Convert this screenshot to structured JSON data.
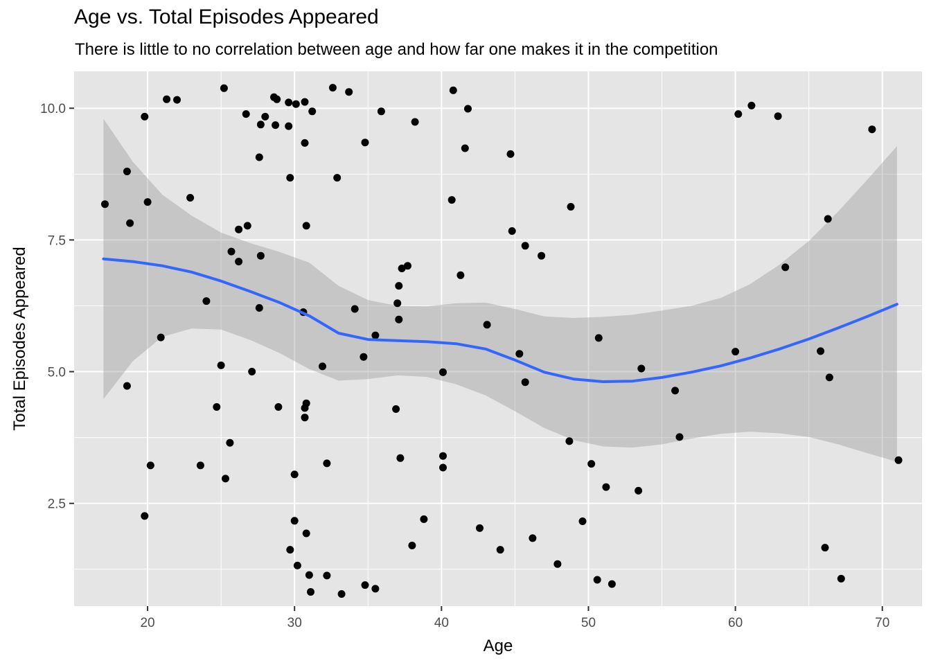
{
  "chart_data": {
    "type": "scatter",
    "title": "Age vs. Total Episodes Appeared",
    "subtitle": "There is little to no correlation between age and how far one makes it in the competition",
    "xlabel": "Age",
    "ylabel": "Total Episodes Appeared",
    "xlim": [
      15,
      72.7
    ],
    "ylim": [
      0.55,
      10.7
    ],
    "x_ticks": [
      20,
      30,
      40,
      50,
      60,
      70
    ],
    "y_ticks": [
      2.5,
      5.0,
      7.5,
      10.0
    ],
    "x_tick_labels": [
      "20",
      "30",
      "40",
      "50",
      "60",
      "70"
    ],
    "y_tick_labels": [
      "2.5",
      "5.0",
      "7.5",
      "10.0"
    ],
    "grid": true,
    "legend": "none",
    "colors": {
      "panel": "#E5E5E5",
      "grid": "#FFFFFF",
      "points": "#000000",
      "smooth_line": "#3366FF",
      "confidence_band": "#999999"
    },
    "points": [
      {
        "x": 17.1,
        "y": 8.18
      },
      {
        "x": 18.6,
        "y": 8.8
      },
      {
        "x": 18.8,
        "y": 7.82
      },
      {
        "x": 18.6,
        "y": 4.73
      },
      {
        "x": 19.8,
        "y": 9.84
      },
      {
        "x": 19.8,
        "y": 2.26
      },
      {
        "x": 20.0,
        "y": 8.22
      },
      {
        "x": 20.2,
        "y": 3.22
      },
      {
        "x": 20.9,
        "y": 5.65
      },
      {
        "x": 21.3,
        "y": 10.17
      },
      {
        "x": 22.0,
        "y": 10.16
      },
      {
        "x": 22.9,
        "y": 8.3
      },
      {
        "x": 23.6,
        "y": 3.22
      },
      {
        "x": 24.0,
        "y": 6.34
      },
      {
        "x": 24.7,
        "y": 4.33
      },
      {
        "x": 25.0,
        "y": 5.12
      },
      {
        "x": 25.2,
        "y": 10.38
      },
      {
        "x": 25.3,
        "y": 2.97
      },
      {
        "x": 25.6,
        "y": 3.65
      },
      {
        "x": 25.7,
        "y": 7.28
      },
      {
        "x": 26.2,
        "y": 7.7
      },
      {
        "x": 26.2,
        "y": 7.09
      },
      {
        "x": 26.7,
        "y": 9.89
      },
      {
        "x": 26.8,
        "y": 7.77
      },
      {
        "x": 27.1,
        "y": 5.0
      },
      {
        "x": 27.6,
        "y": 9.07
      },
      {
        "x": 27.7,
        "y": 9.69
      },
      {
        "x": 27.7,
        "y": 7.2
      },
      {
        "x": 27.6,
        "y": 6.21
      },
      {
        "x": 28.0,
        "y": 9.84
      },
      {
        "x": 28.6,
        "y": 10.21
      },
      {
        "x": 28.8,
        "y": 10.17
      },
      {
        "x": 28.7,
        "y": 9.68
      },
      {
        "x": 28.9,
        "y": 4.33
      },
      {
        "x": 29.6,
        "y": 9.66
      },
      {
        "x": 29.6,
        "y": 10.11
      },
      {
        "x": 29.7,
        "y": 8.68
      },
      {
        "x": 30.1,
        "y": 10.08
      },
      {
        "x": 29.7,
        "y": 1.62
      },
      {
        "x": 30.0,
        "y": 3.05
      },
      {
        "x": 30.0,
        "y": 2.17
      },
      {
        "x": 30.2,
        "y": 1.32
      },
      {
        "x": 30.6,
        "y": 6.13
      },
      {
        "x": 30.7,
        "y": 10.12
      },
      {
        "x": 30.7,
        "y": 9.34
      },
      {
        "x": 30.7,
        "y": 4.31
      },
      {
        "x": 30.7,
        "y": 4.13
      },
      {
        "x": 30.8,
        "y": 4.4
      },
      {
        "x": 30.8,
        "y": 7.77
      },
      {
        "x": 30.8,
        "y": 1.93
      },
      {
        "x": 31.0,
        "y": 1.14
      },
      {
        "x": 31.1,
        "y": 0.82
      },
      {
        "x": 31.2,
        "y": 9.94
      },
      {
        "x": 31.9,
        "y": 5.1
      },
      {
        "x": 32.2,
        "y": 3.26
      },
      {
        "x": 32.2,
        "y": 1.13
      },
      {
        "x": 32.6,
        "y": 10.39
      },
      {
        "x": 32.9,
        "y": 8.68
      },
      {
        "x": 33.2,
        "y": 0.78
      },
      {
        "x": 33.7,
        "y": 10.31
      },
      {
        "x": 34.1,
        "y": 6.19
      },
      {
        "x": 34.7,
        "y": 5.28
      },
      {
        "x": 34.8,
        "y": 9.35
      },
      {
        "x": 34.8,
        "y": 0.95
      },
      {
        "x": 35.5,
        "y": 5.69
      },
      {
        "x": 35.9,
        "y": 9.94
      },
      {
        "x": 35.5,
        "y": 0.88
      },
      {
        "x": 37.0,
        "y": 6.3
      },
      {
        "x": 37.1,
        "y": 6.63
      },
      {
        "x": 37.1,
        "y": 5.99
      },
      {
        "x": 36.9,
        "y": 4.29
      },
      {
        "x": 37.2,
        "y": 3.36
      },
      {
        "x": 37.3,
        "y": 6.96
      },
      {
        "x": 37.7,
        "y": 7.01
      },
      {
        "x": 38.0,
        "y": 1.7
      },
      {
        "x": 38.2,
        "y": 9.74
      },
      {
        "x": 38.8,
        "y": 2.2
      },
      {
        "x": 40.1,
        "y": 3.4
      },
      {
        "x": 40.1,
        "y": 3.18
      },
      {
        "x": 40.1,
        "y": 4.99
      },
      {
        "x": 40.7,
        "y": 8.26
      },
      {
        "x": 40.8,
        "y": 10.34
      },
      {
        "x": 41.3,
        "y": 6.83
      },
      {
        "x": 41.6,
        "y": 9.24
      },
      {
        "x": 41.8,
        "y": 9.99
      },
      {
        "x": 42.6,
        "y": 2.03
      },
      {
        "x": 43.1,
        "y": 5.89
      },
      {
        "x": 44.0,
        "y": 1.62
      },
      {
        "x": 44.7,
        "y": 9.13
      },
      {
        "x": 44.8,
        "y": 7.67
      },
      {
        "x": 45.3,
        "y": 5.34
      },
      {
        "x": 45.7,
        "y": 7.39
      },
      {
        "x": 45.7,
        "y": 4.8
      },
      {
        "x": 46.2,
        "y": 1.84
      },
      {
        "x": 46.8,
        "y": 7.2
      },
      {
        "x": 47.9,
        "y": 1.35
      },
      {
        "x": 48.7,
        "y": 3.68
      },
      {
        "x": 48.8,
        "y": 8.13
      },
      {
        "x": 49.6,
        "y": 2.16
      },
      {
        "x": 50.2,
        "y": 3.25
      },
      {
        "x": 50.6,
        "y": 1.05
      },
      {
        "x": 50.7,
        "y": 5.64
      },
      {
        "x": 51.2,
        "y": 2.81
      },
      {
        "x": 51.6,
        "y": 0.97
      },
      {
        "x": 53.4,
        "y": 2.74
      },
      {
        "x": 53.6,
        "y": 5.06
      },
      {
        "x": 55.9,
        "y": 4.64
      },
      {
        "x": 56.2,
        "y": 3.76
      },
      {
        "x": 60.0,
        "y": 5.38
      },
      {
        "x": 60.2,
        "y": 9.89
      },
      {
        "x": 61.1,
        "y": 10.05
      },
      {
        "x": 62.9,
        "y": 9.85
      },
      {
        "x": 63.4,
        "y": 6.98
      },
      {
        "x": 65.8,
        "y": 5.39
      },
      {
        "x": 66.1,
        "y": 1.66
      },
      {
        "x": 66.3,
        "y": 7.9
      },
      {
        "x": 66.4,
        "y": 4.89
      },
      {
        "x": 67.2,
        "y": 1.07
      },
      {
        "x": 69.3,
        "y": 9.6
      },
      {
        "x": 71.1,
        "y": 3.32
      }
    ],
    "smooth": {
      "x": [
        17,
        19,
        21,
        23,
        25,
        27,
        29,
        31,
        33,
        35,
        37,
        39,
        41,
        43,
        45,
        47,
        49,
        51,
        53,
        55,
        57,
        59,
        61,
        63,
        65,
        67,
        69,
        71
      ],
      "y": [
        7.14,
        7.09,
        7.01,
        6.89,
        6.72,
        6.52,
        6.31,
        6.06,
        5.73,
        5.61,
        5.59,
        5.57,
        5.53,
        5.43,
        5.22,
        4.99,
        4.86,
        4.81,
        4.82,
        4.89,
        4.99,
        5.11,
        5.26,
        5.43,
        5.62,
        5.83,
        6.05,
        6.28
      ],
      "lower": [
        4.48,
        5.2,
        5.66,
        5.82,
        5.8,
        5.6,
        5.35,
        5.05,
        4.83,
        4.86,
        4.93,
        4.9,
        4.76,
        4.55,
        4.25,
        3.93,
        3.7,
        3.58,
        3.56,
        3.62,
        3.73,
        3.82,
        3.86,
        3.83,
        3.76,
        3.62,
        3.45,
        3.29
      ],
      "upper": [
        9.8,
        8.98,
        8.36,
        7.96,
        7.64,
        7.44,
        7.27,
        7.07,
        6.63,
        6.36,
        6.25,
        6.24,
        6.3,
        6.31,
        6.19,
        6.05,
        6.02,
        6.04,
        6.08,
        6.16,
        6.25,
        6.4,
        6.66,
        7.03,
        7.48,
        8.04,
        8.65,
        9.28
      ]
    }
  }
}
